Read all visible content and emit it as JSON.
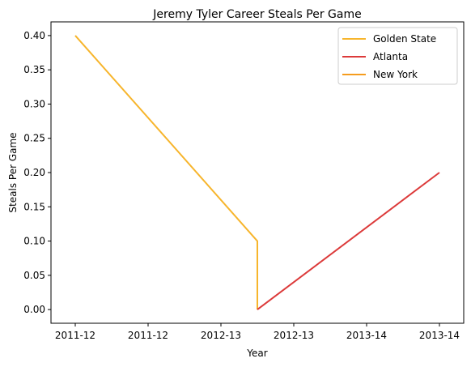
{
  "chart_data": {
    "type": "line",
    "title": "Jeremy Tyler Career Steals Per Game",
    "xlabel": "Year",
    "ylabel": "Steals Per Game",
    "x_tick_labels": [
      "2011-12",
      "2011-12",
      "2012-13",
      "2012-13",
      "2013-14",
      "2013-14"
    ],
    "y_ticks": [
      0.0,
      0.05,
      0.1,
      0.15,
      0.2,
      0.25,
      0.3,
      0.35,
      0.4
    ],
    "y_tick_labels": [
      "0.00",
      "0.05",
      "0.10",
      "0.15",
      "0.20",
      "0.25",
      "0.30",
      "0.35",
      "0.40"
    ],
    "ylim": [
      -0.02,
      0.42
    ],
    "grid": false,
    "legend_position": "top-right",
    "series": [
      {
        "name": "Golden State",
        "color": "#f7b52c",
        "points": [
          {
            "x": "2011-12",
            "y": 0.4
          },
          {
            "x": "2012-13",
            "y": 0.1
          },
          {
            "x": "2012-13",
            "y": 0.0
          }
        ]
      },
      {
        "name": "Atlanta",
        "color": "#dc3a3a",
        "points": [
          {
            "x": "2012-13",
            "y": 0.0
          },
          {
            "x": "2013-14",
            "y": 0.2
          }
        ]
      },
      {
        "name": "New York",
        "color": "#f59c1e",
        "points": []
      }
    ]
  }
}
